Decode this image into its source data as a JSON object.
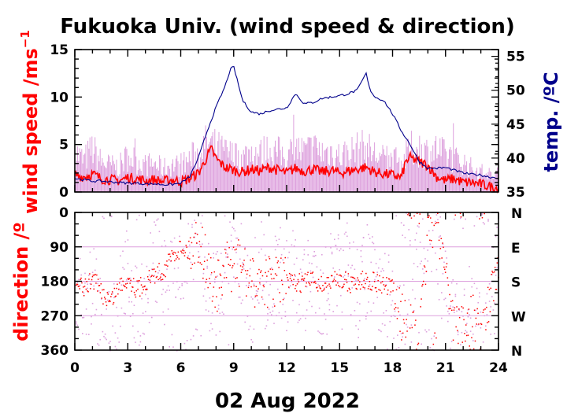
{
  "title": "Fukuoka Univ. (wind speed & direction)",
  "date_label": "02 Aug 2022",
  "colors": {
    "wind_mean": "#ff0000",
    "wind_gust": "#dda0dd",
    "temperature": "#00008b",
    "axis": "#000000",
    "wind_label": "#ff0000",
    "temp_label": "#00008b"
  },
  "chart_data": [
    {
      "type": "line",
      "panel": "top",
      "title": "Fukuoka Univ. (wind speed & direction)",
      "xlabel": "02 Aug 2022",
      "xlim": [
        0,
        24
      ],
      "x_ticks": [
        "0",
        "3",
        "6",
        "9",
        "12",
        "15",
        "18",
        "21",
        "24"
      ],
      "ylabel_left": "wind speed /ms",
      "ylabel_left_sup": "−1",
      "ylim_left": [
        0,
        15
      ],
      "y_ticks_left": [
        "0",
        "5",
        "10",
        "15"
      ],
      "ylabel_right": "temp. /ºC",
      "ylim_right": [
        35,
        56
      ],
      "y_ticks_right": [
        "35",
        "40",
        "45",
        "50",
        "55"
      ],
      "series": [
        {
          "role": "wind speed (mean)",
          "axis": "left",
          "color": "#ff0000",
          "x": [
            0,
            0.5,
            1,
            1.5,
            2,
            2.5,
            3,
            3.5,
            4,
            4.5,
            5,
            5.5,
            6,
            6.5,
            7,
            7.25,
            7.5,
            7.75,
            8,
            8.5,
            9,
            9.5,
            10,
            10.5,
            11,
            11.5,
            12,
            12.5,
            13,
            13.5,
            14,
            14.5,
            15,
            15.5,
            16,
            16.5,
            17,
            17.5,
            18,
            18.5,
            18.75,
            19,
            19.5,
            20,
            20.5,
            21,
            21.5,
            22,
            22.5,
            23,
            23.5,
            24
          ],
          "y": [
            1.8,
            1.6,
            1.9,
            1.4,
            1.3,
            1.2,
            1.5,
            1.4,
            1.2,
            1.3,
            1.1,
            1.3,
            1.1,
            1.4,
            2.0,
            2.8,
            3.8,
            4.5,
            3.5,
            2.6,
            2.3,
            2.1,
            2.4,
            2.2,
            2.6,
            2.3,
            2.0,
            2.5,
            2.2,
            2.4,
            2.1,
            2.3,
            2.0,
            2.2,
            2.4,
            2.6,
            2.1,
            1.9,
            1.8,
            1.5,
            3.2,
            3.6,
            3.2,
            2.8,
            1.6,
            1.2,
            1.4,
            1.0,
            1.0,
            0.8,
            0.6,
            0.4
          ]
        },
        {
          "role": "wind speed (gust)",
          "axis": "left",
          "color": "#dda0dd",
          "x": [
            0,
            0.5,
            1,
            1.5,
            2,
            2.5,
            3,
            3.5,
            4,
            4.5,
            5,
            5.5,
            6,
            6.5,
            7,
            7.5,
            8,
            8.5,
            9,
            9.5,
            10,
            10.5,
            11,
            11.5,
            12,
            12.5,
            13,
            13.5,
            14,
            14.5,
            15,
            15.5,
            16,
            16.5,
            17,
            17.5,
            18,
            18.5,
            19,
            19.5,
            20,
            20.5,
            21,
            21.5,
            22,
            22.5,
            23,
            23.5,
            24
          ],
          "y": [
            5.2,
            4.0,
            5.5,
            3.8,
            3.4,
            3.2,
            4.6,
            4.0,
            3.4,
            3.6,
            3.0,
            3.5,
            3.3,
            4.2,
            5.0,
            6.2,
            5.6,
            5.0,
            4.6,
            4.4,
            5.2,
            4.8,
            5.4,
            5.0,
            4.6,
            5.6,
            5.0,
            5.6,
            5.0,
            5.2,
            4.6,
            5.0,
            5.4,
            5.6,
            4.8,
            4.2,
            4.0,
            3.6,
            5.4,
            5.6,
            5.0,
            5.4,
            4.6,
            4.2,
            3.8,
            3.0,
            2.6,
            2.2,
            2.0
          ]
        },
        {
          "role": "temperature",
          "axis": "right",
          "color": "#00008b",
          "x": [
            0,
            0.5,
            1,
            1.5,
            2,
            2.5,
            3,
            3.5,
            4,
            4.5,
            5,
            5.5,
            6,
            6.5,
            7,
            7.5,
            8,
            8.5,
            8.8,
            9.0,
            9.2,
            9.5,
            10,
            10.5,
            11,
            11.5,
            12,
            12.5,
            13,
            13.5,
            14,
            14.5,
            15,
            15.5,
            16,
            16.3,
            16.5,
            16.7,
            17,
            17.5,
            18,
            18.5,
            19,
            19.5,
            20,
            20.5,
            21,
            21.5,
            22,
            22.5,
            23,
            23.5,
            24
          ],
          "y": [
            37.0,
            36.8,
            36.6,
            36.6,
            36.5,
            36.4,
            36.3,
            36.3,
            36.2,
            36.2,
            36.1,
            36.1,
            36.3,
            37.2,
            40.0,
            44.0,
            47.5,
            50.5,
            53.0,
            53.5,
            51.5,
            48.5,
            46.8,
            46.5,
            47.0,
            47.2,
            47.4,
            49.5,
            48.0,
            48.2,
            48.8,
            49.0,
            49.2,
            49.5,
            50.0,
            51.5,
            52.5,
            50.2,
            49.0,
            48.5,
            46.5,
            44.0,
            42.0,
            39.5,
            38.5,
            38.5,
            38.6,
            38.2,
            37.8,
            37.6,
            37.5,
            37.2,
            37.1
          ]
        }
      ]
    },
    {
      "type": "scatter",
      "panel": "bottom",
      "xlabel": "02 Aug 2022",
      "xlim": [
        0,
        24
      ],
      "x_ticks": [
        "0",
        "3",
        "6",
        "9",
        "12",
        "15",
        "18",
        "21",
        "24"
      ],
      "ylabel": "direction /º",
      "ylim": [
        360,
        0
      ],
      "y_ticks_left": [
        "0",
        "90",
        "180",
        "270",
        "360"
      ],
      "y_ticks_right": [
        "N",
        "E",
        "S",
        "W",
        "N"
      ],
      "series": [
        {
          "role": "wind direction (mean)",
          "color": "#ff0000",
          "x": [
            0,
            0.5,
            1,
            1.5,
            2,
            2.5,
            3,
            3.5,
            4,
            4.5,
            5,
            5.5,
            6,
            6.5,
            7,
            7.5,
            8,
            8.5,
            9,
            9.5,
            10,
            10.5,
            11,
            11.5,
            12,
            12.5,
            13,
            13.5,
            14,
            14.5,
            15,
            15.5,
            16,
            16.5,
            17,
            17.5,
            18,
            18.5,
            19,
            19.5,
            20,
            20.5,
            21,
            21.5,
            22,
            22.5,
            23,
            23.5,
            24
          ],
          "y": [
            180,
            200,
            170,
            210,
            230,
            190,
            170,
            200,
            180,
            160,
            150,
            110,
            90,
            100,
            60,
            150,
            200,
            150,
            130,
            140,
            190,
            170,
            180,
            175,
            180,
            185,
            180,
            175,
            190,
            180,
            170,
            185,
            180,
            175,
            180,
            190,
            200,
            270,
            310,
            340,
            30,
            20,
            150,
            300,
            310,
            280,
            340,
            200,
            170
          ]
        },
        {
          "role": "wind direction (instantaneous)",
          "color": "#dda0dd",
          "x": [
            0,
            0.5,
            1,
            1.5,
            2,
            2.5,
            3,
            3.5,
            4,
            4.5,
            5,
            5.5,
            6,
            6.5,
            7,
            7.5,
            8,
            8.5,
            9,
            9.5,
            10,
            10.5,
            11,
            11.5,
            12,
            12.5,
            13,
            13.5,
            14,
            14.5,
            15,
            15.5,
            16,
            16.5,
            17,
            17.5,
            18,
            18.5,
            19,
            19.5,
            20,
            20.5,
            21,
            21.5,
            22,
            22.5,
            23,
            23.5,
            24
          ],
          "y": [
            200,
            250,
            150,
            280,
            300,
            220,
            140,
            260,
            200,
            130,
            170,
            80,
            120,
            60,
            40,
            180,
            240,
            120,
            100,
            160,
            220,
            140,
            210,
            150,
            200,
            160,
            210,
            150,
            220,
            160,
            190,
            140,
            210,
            150,
            200,
            230,
            240,
            300,
            330,
            10,
            50,
            100,
            200,
            320,
            290,
            250,
            350,
            230,
            140
          ]
        }
      ]
    }
  ]
}
